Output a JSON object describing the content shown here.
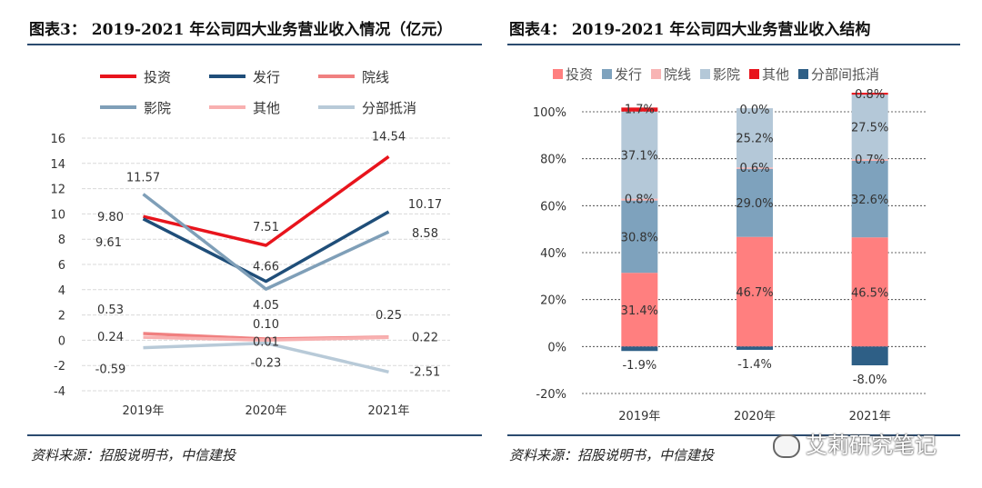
{
  "left": {
    "title": "图表3： 2019-2021 年公司四大业务营业收入情况（亿元）",
    "source": "资料来源：招股说明书，中信建投"
  },
  "right": {
    "title": "图表4： 2019-2021 年公司四大业务营业收入结构",
    "source": "资料来源：招股说明书，中信建投"
  },
  "watermark": "艾莉研究笔记",
  "chart_data": [
    {
      "type": "line",
      "title": "",
      "categories": [
        "2019年",
        "2020年",
        "2021年"
      ],
      "ylim": [
        -4,
        16
      ],
      "yticks": [
        -4,
        -2,
        0,
        2,
        4,
        6,
        8,
        10,
        12,
        14,
        16
      ],
      "legend_placement": "top",
      "grid": true,
      "series": [
        {
          "name": "投资",
          "values": [
            9.8,
            7.51,
            14.54
          ],
          "labels": [
            "9.80",
            "7.51",
            "14.54"
          ],
          "color": "#e8141c"
        },
        {
          "name": "发行",
          "values": [
            9.61,
            4.66,
            10.17
          ],
          "labels": [
            "9.61",
            "4.66",
            "10.17"
          ],
          "color": "#1f4e79"
        },
        {
          "name": "院线",
          "values": [
            0.53,
            0.1,
            0.25
          ],
          "labels": [
            "0.53",
            "0.10",
            "0.25"
          ],
          "color": "#f08080"
        },
        {
          "name": "影院",
          "values": [
            11.57,
            4.05,
            8.58
          ],
          "labels": [
            "11.57",
            "4.05",
            "8.58"
          ],
          "color": "#7f9fb8"
        },
        {
          "name": "其他",
          "values": [
            0.24,
            0.01,
            0.22
          ],
          "labels": [
            "0.24",
            "0.01",
            "0.22"
          ],
          "color": "#f8b0b0"
        },
        {
          "name": "分部抵消",
          "values": [
            -0.59,
            -0.23,
            -2.51
          ],
          "labels": [
            "-0.59",
            "-0.23",
            "-2.51"
          ],
          "color": "#b8cad8"
        }
      ]
    },
    {
      "type": "bar",
      "stacked": true,
      "title": "",
      "categories": [
        "2019年",
        "2020年",
        "2021年"
      ],
      "ylim": [
        -20,
        100
      ],
      "yticks": [
        "-20%",
        "0%",
        "20%",
        "40%",
        "60%",
        "80%",
        "100%"
      ],
      "legend_placement": "top",
      "grid": true,
      "series": [
        {
          "name": "投资",
          "values": [
            31.4,
            46.7,
            46.5
          ],
          "labels": [
            "31.4%",
            "46.7%",
            "46.5%"
          ],
          "color": "#ff7f7f"
        },
        {
          "name": "发行",
          "values": [
            30.8,
            29.0,
            32.6
          ],
          "labels": [
            "30.8%",
            "29.0%",
            "32.6%"
          ],
          "color": "#7ea2bd"
        },
        {
          "name": "院线",
          "values": [
            0.8,
            0.6,
            0.7
          ],
          "labels": [
            "0.8%",
            "0.6%",
            "0.7%"
          ],
          "color": "#f8b4b4"
        },
        {
          "name": "影院",
          "values": [
            37.1,
            25.2,
            27.5
          ],
          "labels": [
            "37.1%",
            "25.2%",
            "27.5%"
          ],
          "color": "#b4c8d8"
        },
        {
          "name": "其他",
          "values": [
            1.7,
            0.0,
            0.8
          ],
          "labels": [
            "1.7%",
            "0.0%",
            "0.8%"
          ],
          "color": "#e8141c"
        },
        {
          "name": "分部间抵消",
          "values": [
            -1.9,
            -1.4,
            -8.0
          ],
          "labels": [
            "-1.9%",
            "-1.4%",
            "-8.0%"
          ],
          "color": "#2e5f86"
        }
      ]
    }
  ]
}
